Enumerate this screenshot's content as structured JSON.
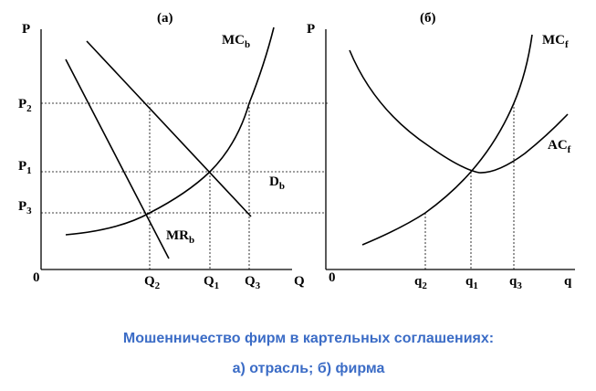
{
  "panel_a": {
    "title": "(а)",
    "y_axis": "P",
    "origin": "0",
    "x_axis": "Q",
    "y_labels": [
      {
        "main": "P",
        "sub": "2"
      },
      {
        "main": "P",
        "sub": "1"
      },
      {
        "main": "P",
        "sub": "3"
      }
    ],
    "x_labels": [
      {
        "main": "Q",
        "sub": "2"
      },
      {
        "main": "Q",
        "sub": "1"
      },
      {
        "main": "Q",
        "sub": "3"
      }
    ],
    "curves": [
      {
        "main": "MC",
        "sub": "b"
      },
      {
        "main": "D",
        "sub": "b"
      },
      {
        "main": "MR",
        "sub": "b"
      }
    ]
  },
  "panel_b": {
    "title": "(б)",
    "y_axis": "P",
    "origin": "0",
    "x_axis": "q",
    "x_labels": [
      {
        "main": "q",
        "sub": "2"
      },
      {
        "main": "q",
        "sub": "1"
      },
      {
        "main": "q",
        "sub": "3"
      }
    ],
    "curves": [
      {
        "main": "MC",
        "sub": "f"
      },
      {
        "main": "AC",
        "sub": "f"
      }
    ]
  },
  "caption": {
    "line1": "Мошенничество фирм в картельных соглашениях:",
    "line2": "а) отрасль; б) фирма"
  }
}
